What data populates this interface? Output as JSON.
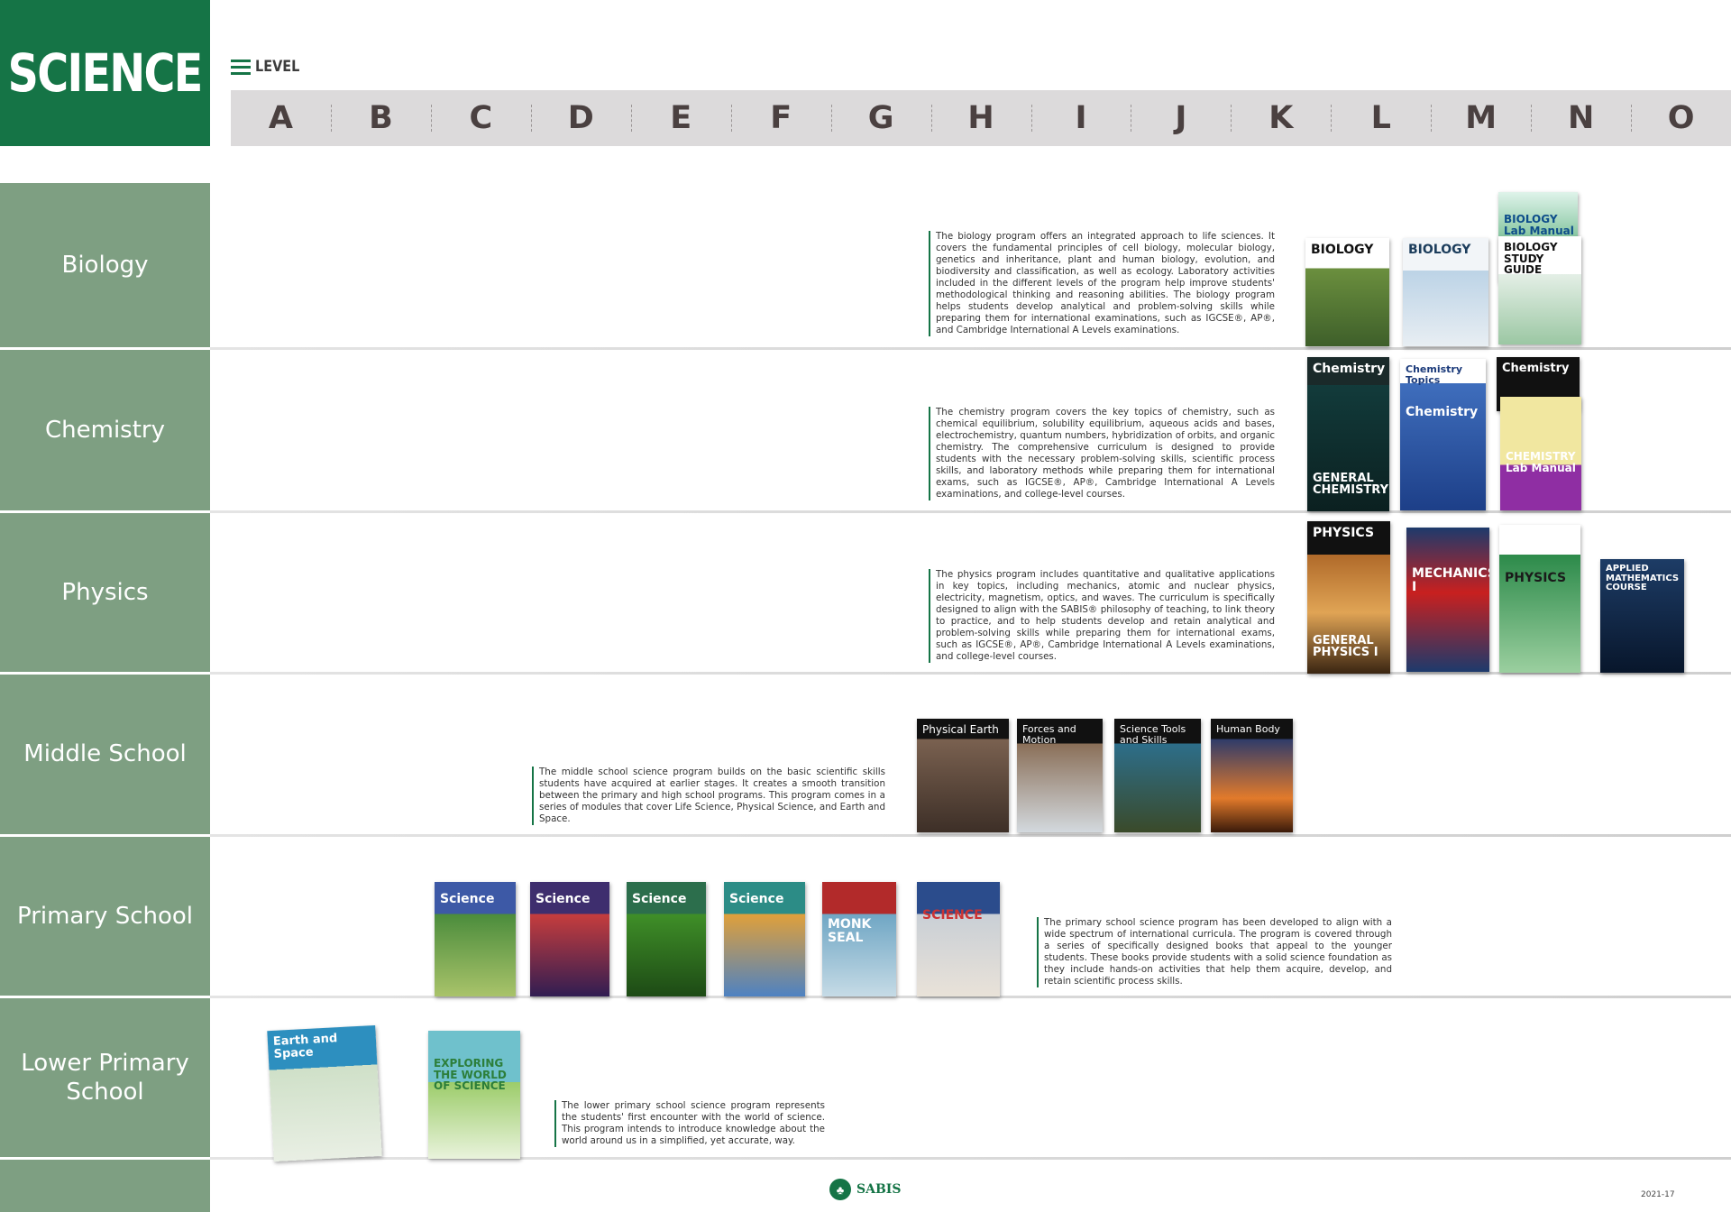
{
  "header": {
    "title": "SCIENCE",
    "level_label": "LEVEL"
  },
  "levels": [
    "A",
    "B",
    "C",
    "D",
    "E",
    "F",
    "G",
    "H",
    "I",
    "J",
    "K",
    "L",
    "M",
    "N",
    "O"
  ],
  "categories": [
    {
      "name": "Biology",
      "description": "The biology program offers an integrated approach to life sciences. It covers the fundamental principles of cell biology, molecular biology, genetics and inheritance, plant and human biology, evolution, and biodiversity and classification, as well as ecology. Laboratory activities included in the different levels of the program help improve students' methodological thinking and reasoning abilities. The biology program helps students develop analytical and problem-solving skills while preparing them for international examinations, such as IGCSE®, AP®, and Cambridge International A Levels examinations."
    },
    {
      "name": "Chemistry",
      "description": "The chemistry program covers the key topics of chemistry, such as chemical equilibrium, solubility equilibrium, aqueous acids and bases, electrochemistry, quantum numbers, hybridization of orbits, and organic chemistry. The comprehensive curriculum is designed to provide students with the necessary problem-solving skills, scientific process skills, and laboratory methods while preparing them for international exams, such as IGCSE®, AP®, Cambridge International A Levels examinations, and college-level courses."
    },
    {
      "name": "Physics",
      "description": "The physics program includes quantitative and qualitative applications in key topics, including mechanics, atomic and nuclear physics, electricity, magnetism, optics, and waves. The curriculum is specifically designed to align with the SABIS® philosophy of teaching, to link theory to practice, and to help students develop and retain analytical and problem-solving skills while preparing them for international exams, such as IGCSE®, AP®, Cambridge International A Levels examinations, and college-level courses."
    },
    {
      "name": "Middle School",
      "description": "The middle school science program builds on the basic scientific skills students have acquired at earlier stages. It creates a smooth transition between the primary and high school programs. This program comes in a series of modules that cover Life Science, Physical Science, and Earth and Space."
    },
    {
      "name": "Primary School",
      "description": "The primary school science program has been developed to align with a wide spectrum of international curricula. The program is covered through a series of specifically designed books that appeal to the younger students. These books provide students with a solid science foundation as they include hands-on activities that help them acquire, develop, and retain scientific process skills."
    },
    {
      "name": "Lower Primary School",
      "description": "The lower primary school science program represents the students' first encounter with the world of science. This program intends to introduce knowledge about the world around us in a simplified, yet accurate, way."
    }
  ],
  "books": {
    "bio_l": "BIOLOGY",
    "bio_m": "BIOLOGY",
    "bio_lab": "BIOLOGY Lab Manual",
    "bio_sg": "BIOLOGY STUDY GUIDE",
    "chem_l": "Chemistry",
    "chem_l_sub": "GENERAL CHEMISTRY",
    "chem_topics": "Chemistry Topics",
    "chem_m": "Chemistry",
    "chem_back": "Chemistry",
    "chem_lab": "CHEMISTRY Lab Manual",
    "phys_l": "PHYSICS",
    "phys_l_sub": "GENERAL PHYSICS I",
    "phys_mech": "MECHANICS I",
    "phys_n": "PHYSICS",
    "applied_math": "APPLIED MATHEMATICS COURSE",
    "ms_earth": "Physical Earth",
    "ms_forces": "Forces and Motion",
    "ms_tools": "Science Tools and Skills",
    "ms_body": "Human Body",
    "ps_1": "Science",
    "ps_2": "Science",
    "ps_3": "Science",
    "ps_4": "Science",
    "ps_5": "MONK SEAL",
    "ps_6": "SCIENCE",
    "lp_1": "Earth and Space",
    "lp_2": "EXPLORING THE WORLD OF SCIENCE"
  },
  "footer": {
    "logo": "SABIS",
    "code": "2021-17"
  },
  "colors": {
    "brand_green": "#157446",
    "category_green": "#7e9f82",
    "level_bar": "#dcdadb"
  }
}
